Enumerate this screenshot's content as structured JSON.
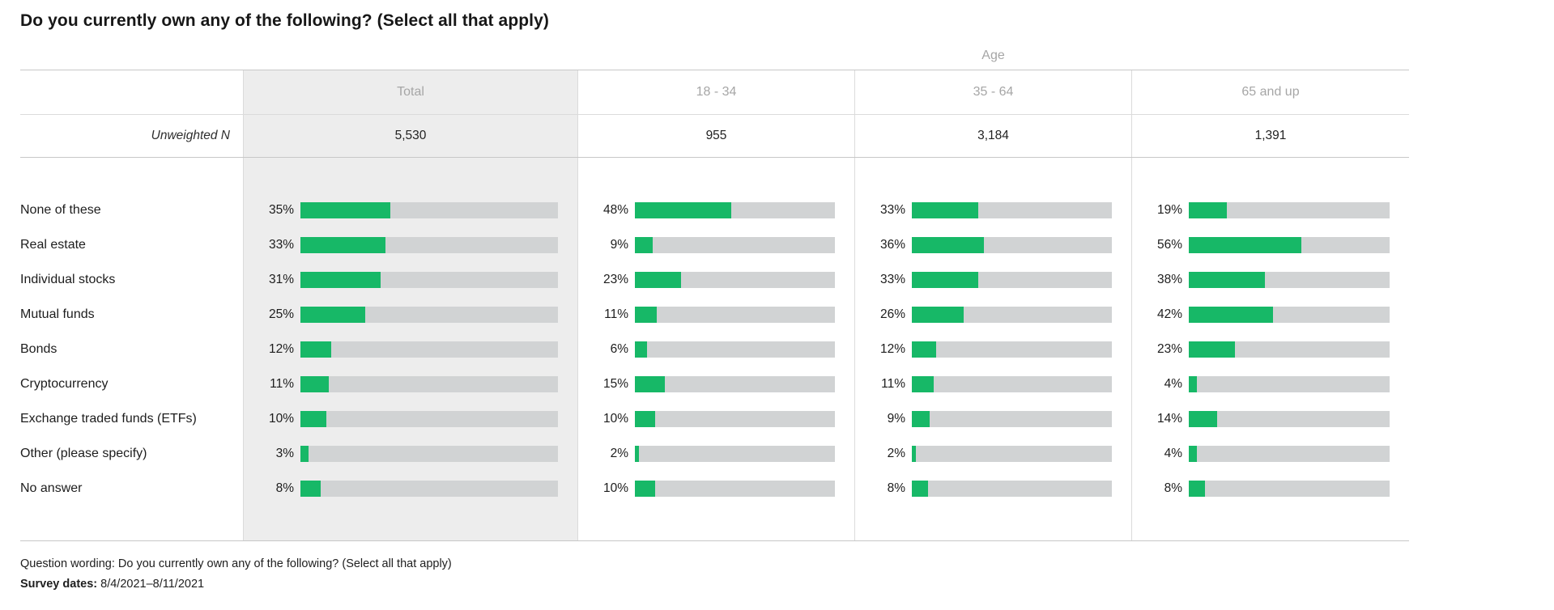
{
  "title": "Do you currently own any of the following? (Select all that apply)",
  "chart_data": {
    "type": "bar",
    "orientation": "horizontal",
    "group_header": "Age",
    "columns": [
      "Total",
      "18 - 34",
      "35 - 64",
      "65 and up"
    ],
    "unweighted_label": "Unweighted N",
    "unweighted_n": [
      "5,530",
      "955",
      "3,184",
      "1,391"
    ],
    "value_unit": "%",
    "xlim": [
      0,
      100
    ],
    "categories": [
      "None of these",
      "Real estate",
      "Individual stocks",
      "Mutual funds",
      "Bonds",
      "Cryptocurrency",
      "Exchange traded funds (ETFs)",
      "Other (please specify)",
      "No answer"
    ],
    "series": [
      {
        "name": "Total",
        "values": [
          35,
          33,
          31,
          25,
          12,
          11,
          10,
          3,
          8
        ]
      },
      {
        "name": "18 - 34",
        "values": [
          48,
          9,
          23,
          11,
          6,
          15,
          10,
          2,
          10
        ]
      },
      {
        "name": "35 - 64",
        "values": [
          33,
          36,
          33,
          26,
          12,
          11,
          9,
          2,
          8
        ]
      },
      {
        "name": "65 and up",
        "values": [
          19,
          56,
          38,
          42,
          23,
          4,
          14,
          4,
          8
        ]
      }
    ]
  },
  "footer": {
    "question_wording_label": "Question wording:",
    "question_wording": "Do you currently own any of the following? (Select all that apply)",
    "survey_dates_label": "Survey dates:",
    "survey_dates": "8/4/2021–8/11/2021"
  },
  "colors": {
    "bar_fill_green": "#17B867",
    "bar_track_gray": "#D1D3D4",
    "total_column_bg": "#EDEDED",
    "header_text_gray": "#A6A6A6",
    "border_gray": "#C7C7C7"
  }
}
